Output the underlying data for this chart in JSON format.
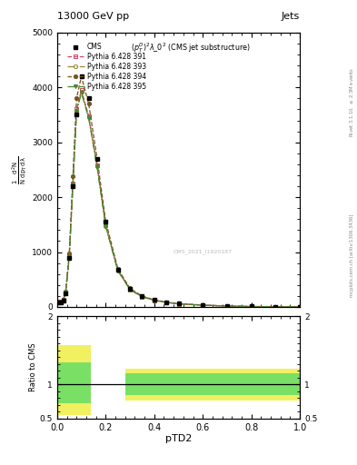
{
  "title_top": "13000 GeV pp",
  "title_right": "Jets",
  "plot_title": "$(p_T^D)^2\\lambda\\_0^2$ (CMS jet substructure)",
  "xlabel": "pTD2",
  "ylabel_ratio": "Ratio to CMS",
  "right_label_top": "Rivet 3.1.10, $\\geq$ 2.3M events",
  "right_label_bot": "mcplots.cern.ch [arXiv:1306.3436]",
  "watermark": "CMS_2021_I1920187",
  "cms_x": [
    0.005,
    0.015,
    0.025,
    0.035,
    0.05,
    0.065,
    0.08,
    0.1,
    0.13,
    0.165,
    0.2,
    0.25,
    0.3,
    0.35,
    0.4,
    0.45,
    0.5,
    0.6,
    0.7,
    0.8,
    0.9,
    1.0
  ],
  "cms_y": [
    85,
    88,
    120,
    250,
    900,
    2200,
    3500,
    4200,
    3800,
    2700,
    1550,
    680,
    330,
    190,
    125,
    85,
    58,
    32,
    16,
    7,
    3,
    1
  ],
  "py391_x": [
    0.005,
    0.015,
    0.025,
    0.035,
    0.05,
    0.065,
    0.08,
    0.1,
    0.13,
    0.165,
    0.2,
    0.25,
    0.3,
    0.35,
    0.4,
    0.45,
    0.5,
    0.6,
    0.7,
    0.8,
    0.9,
    1.0
  ],
  "py391_y": [
    88,
    90,
    125,
    260,
    920,
    2250,
    3600,
    3950,
    3480,
    2580,
    1490,
    670,
    320,
    188,
    122,
    83,
    56,
    31,
    15,
    6.5,
    2.5,
    0.8
  ],
  "py393_x": [
    0.005,
    0.015,
    0.025,
    0.035,
    0.05,
    0.065,
    0.08,
    0.1,
    0.13,
    0.165,
    0.2,
    0.25,
    0.3,
    0.35,
    0.4,
    0.45,
    0.5,
    0.6,
    0.7,
    0.8,
    0.9,
    1.0
  ],
  "py393_y": [
    87,
    89,
    123,
    258,
    910,
    2230,
    3580,
    3920,
    3460,
    2560,
    1480,
    665,
    318,
    186,
    120,
    82,
    55,
    30.5,
    14.8,
    6.3,
    2.4,
    0.7
  ],
  "py394_x": [
    0.005,
    0.015,
    0.025,
    0.035,
    0.05,
    0.065,
    0.08,
    0.1,
    0.13,
    0.165,
    0.2,
    0.25,
    0.3,
    0.35,
    0.4,
    0.45,
    0.5,
    0.6,
    0.7,
    0.8,
    0.9,
    1.0
  ],
  "py394_y": [
    92,
    95,
    132,
    275,
    970,
    2380,
    3800,
    4200,
    3700,
    2700,
    1560,
    700,
    338,
    198,
    128,
    88,
    60,
    34,
    17,
    7.5,
    2.9,
    0.9
  ],
  "py395_x": [
    0.005,
    0.015,
    0.025,
    0.035,
    0.05,
    0.065,
    0.08,
    0.1,
    0.13,
    0.165,
    0.2,
    0.25,
    0.3,
    0.35,
    0.4,
    0.45,
    0.5,
    0.6,
    0.7,
    0.8,
    0.9,
    1.0
  ],
  "py395_y": [
    86,
    88,
    122,
    256,
    905,
    2220,
    3560,
    3900,
    3440,
    2540,
    1470,
    660,
    315,
    184,
    119,
    81,
    54,
    30,
    14.5,
    6.2,
    2.3,
    0.7
  ],
  "color_391": "#cc4466",
  "color_393": "#998833",
  "color_394": "#775522",
  "color_395": "#448833",
  "ylim_main": [
    0,
    5000
  ],
  "ylim_ratio": [
    0.5,
    2.0
  ],
  "xlim": [
    0,
    1.0
  ],
  "yticks_main": [
    0,
    1000,
    2000,
    3000,
    4000,
    5000
  ],
  "ytick_labels_main": [
    "0",
    "1000",
    "2000",
    "3000",
    "4000",
    "5000"
  ],
  "yticks_ratio": [
    0.5,
    1.0,
    2.0
  ],
  "ytick_labels_ratio": [
    "0.5",
    "1",
    "2"
  ]
}
